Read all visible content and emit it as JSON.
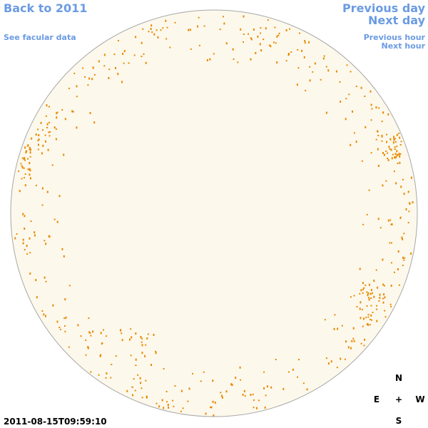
{
  "links": {
    "back": "Back to 2011",
    "facular": "See facular data",
    "previous_day": "Previous day",
    "next_day": "Next day",
    "previous_hour": "Previous hour",
    "next_hour": "Next hour"
  },
  "timestamp": "2011-08-15T09:59:10",
  "compass": {
    "north": "N",
    "east": "E",
    "center": "+",
    "west": "W",
    "south": "S"
  }
}
